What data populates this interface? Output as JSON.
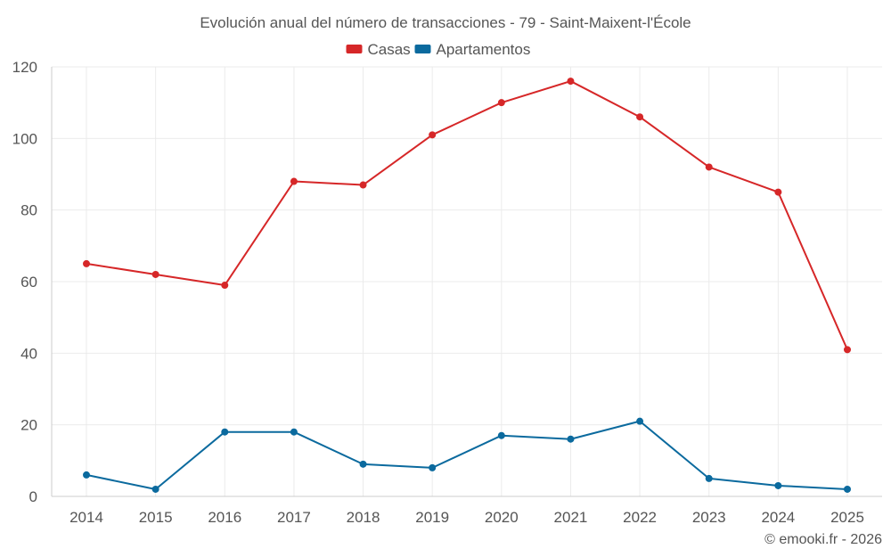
{
  "chart_data": {
    "type": "line",
    "title": "Evolución anual del número de transacciones - 79 - Saint-Maixent-l'École",
    "categories": [
      "2014",
      "2015",
      "2016",
      "2017",
      "2018",
      "2019",
      "2020",
      "2021",
      "2022",
      "2023",
      "2024",
      "2025"
    ],
    "series": [
      {
        "name": "Casas",
        "color": "#d62728",
        "values": [
          65,
          62,
          59,
          88,
          87,
          101,
          110,
          116,
          106,
          92,
          85,
          41
        ]
      },
      {
        "name": "Apartamentos",
        "color": "#0b6a9e",
        "values": [
          6,
          2,
          18,
          18,
          9,
          8,
          17,
          16,
          21,
          5,
          3,
          2
        ]
      }
    ],
    "ylim": [
      0,
      120
    ],
    "yticks": [
      0,
      20,
      40,
      60,
      80,
      100,
      120
    ],
    "grid": true,
    "legend": "top-center",
    "xlabel": "",
    "ylabel": ""
  },
  "credit": "© emooki.fr - 2026"
}
